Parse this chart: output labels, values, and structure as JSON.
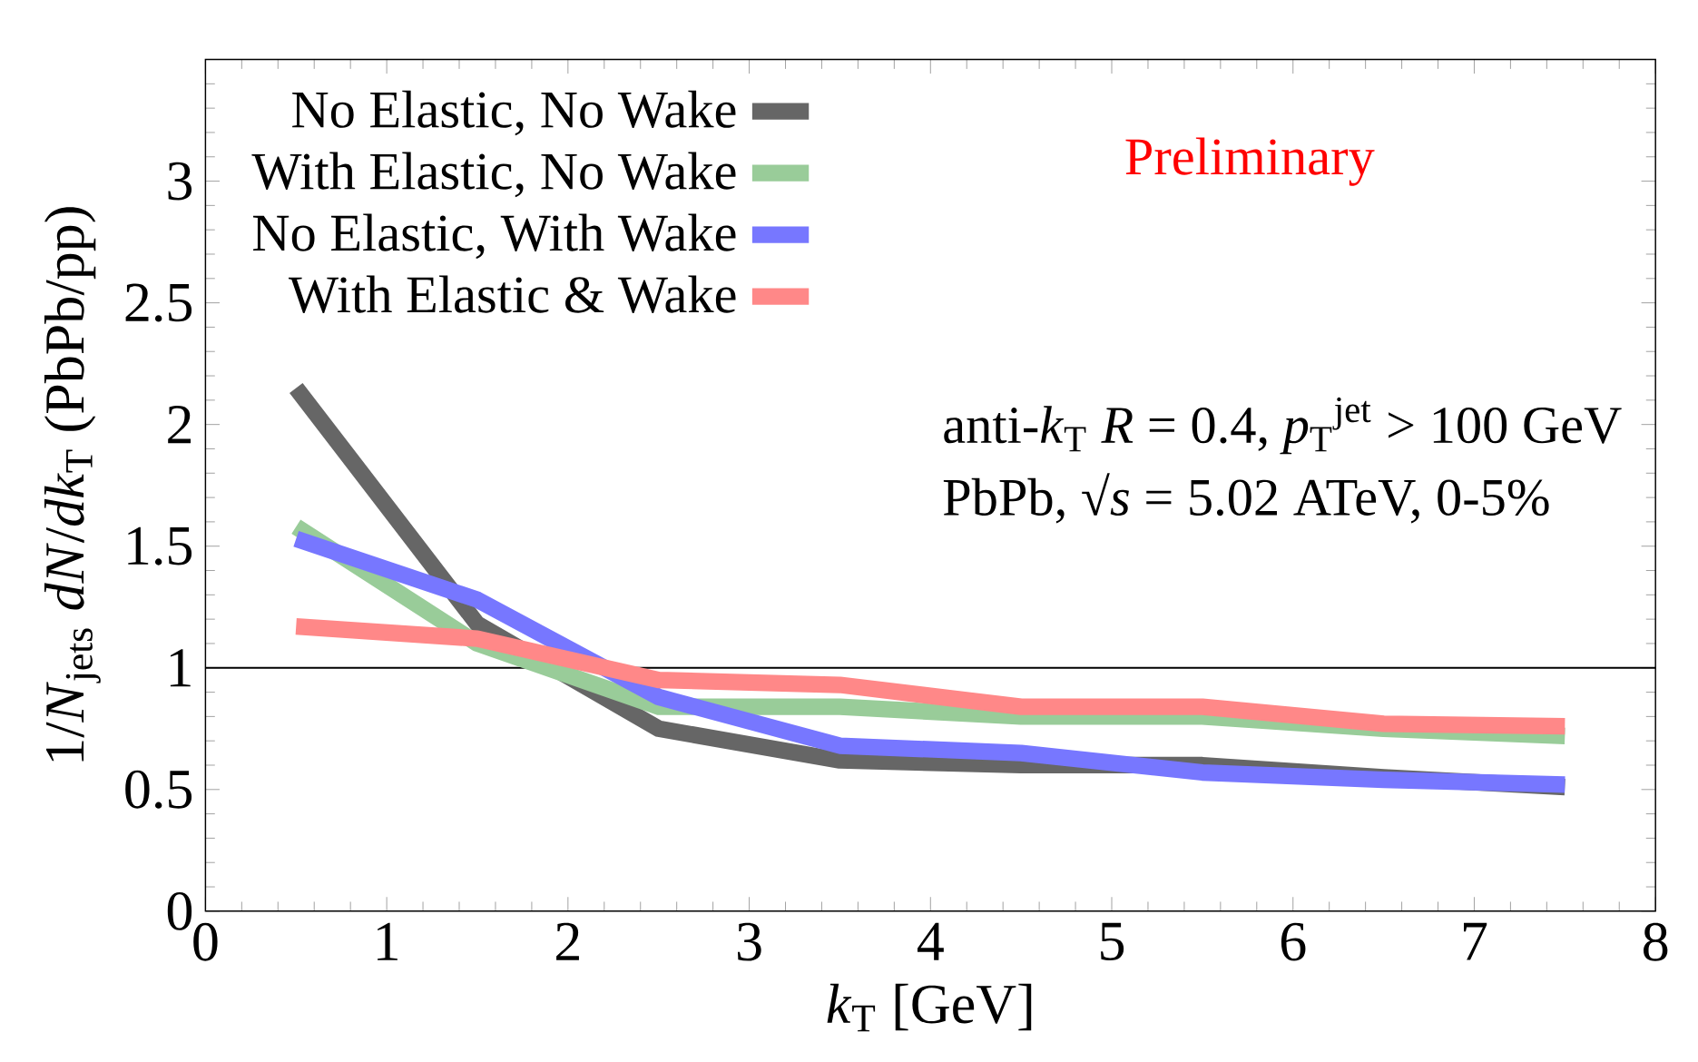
{
  "chart_data": {
    "type": "line",
    "xlabel": "*k*$_{T}$ [GeV]",
    "ylabel": "1/*N*$_{jets}$ *dN*/*dk*$_{T}$ (PbPb/pp)",
    "x": [
      0.5,
      1.5,
      2.5,
      3.5,
      4.5,
      5.5,
      6.5,
      7.5
    ],
    "series": [
      {
        "name": "No Elastic, No Wake",
        "color": "#666666",
        "values": [
          2.15,
          1.18,
          0.75,
          0.62,
          0.6,
          0.6,
          0.55,
          0.51
        ]
      },
      {
        "name": "With Elastic, No Wake",
        "color": "#99cc99",
        "values": [
          1.58,
          1.1,
          0.84,
          0.84,
          0.8,
          0.8,
          0.75,
          0.72
        ]
      },
      {
        "name": "No Elastic, With Wake",
        "color": "#7777ff",
        "values": [
          1.53,
          1.28,
          0.88,
          0.68,
          0.65,
          0.57,
          0.54,
          0.52
        ]
      },
      {
        "name": "With Elastic & Wake",
        "color": "#ff8888",
        "values": [
          1.17,
          1.12,
          0.95,
          0.93,
          0.84,
          0.84,
          0.77,
          0.76
        ]
      }
    ],
    "xlim": [
      0,
      8
    ],
    "ylim": [
      0,
      3.5
    ],
    "xticks": [
      0,
      1,
      2,
      3,
      4,
      5,
      6,
      7,
      8
    ],
    "yticks": [
      0,
      0.5,
      1,
      1.5,
      2,
      2.5,
      3,
      {
        "value": 3.5,
        "label": null
      }
    ],
    "ref_lines": [
      {
        "axis": "y",
        "value": 1,
        "color": "#000000"
      }
    ],
    "annotations": [
      "Preliminary",
      "anti-*k*$_{T}$ *R* = 0.4, *p*$_{T}$$^{jet}$ > 100 GeV",
      "PbPb, √*s* = 5.02 ATeV, 0-5%"
    ],
    "legend": "top left",
    "marker": "none",
    "line_style": "solid",
    "grid": false
  }
}
